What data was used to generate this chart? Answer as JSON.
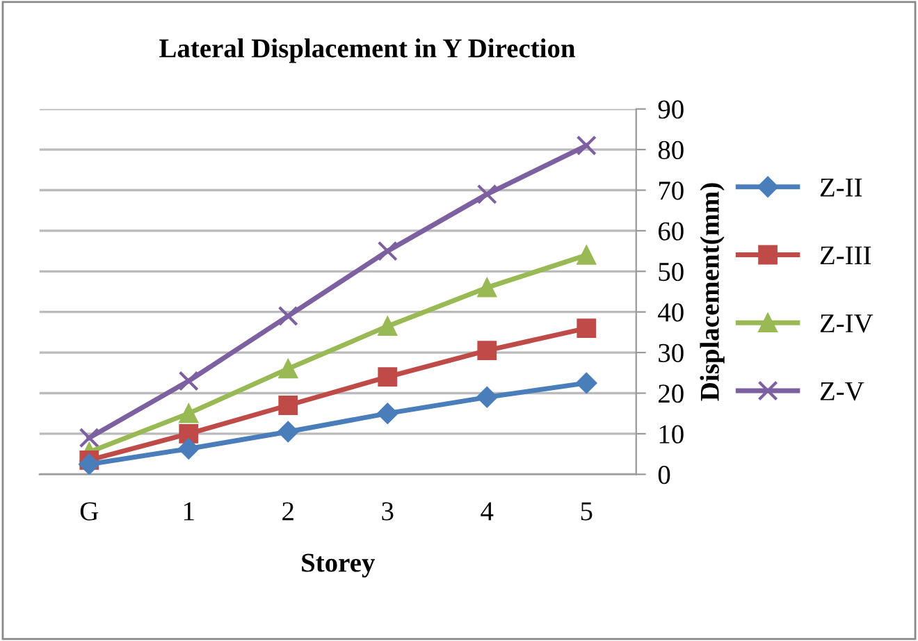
{
  "chart_data": {
    "type": "line",
    "title": "Lateral Displacement in Y Direction",
    "xlabel": "Storey",
    "ylabel": "Displacement(mm)",
    "categories": [
      "G",
      "1",
      "2",
      "3",
      "4",
      "5"
    ],
    "series": [
      {
        "name": "Z-II",
        "color": "#4a7ebb",
        "marker": "diamond",
        "values": [
          2.5,
          6.3,
          10.5,
          15,
          19,
          22.5
        ]
      },
      {
        "name": "Z-III",
        "color": "#be4b48",
        "marker": "square",
        "values": [
          3.5,
          10,
          17,
          24,
          30.5,
          36
        ]
      },
      {
        "name": "Z-IV",
        "color": "#98b954",
        "marker": "triangle",
        "values": [
          5.5,
          15,
          26,
          36.5,
          46,
          54
        ]
      },
      {
        "name": "Z-V",
        "color": "#7d60a0",
        "marker": "cross",
        "values": [
          9,
          23,
          39,
          55,
          69,
          81
        ]
      }
    ],
    "ylim": [
      0,
      90
    ],
    "yticks": [
      0,
      10,
      20,
      30,
      40,
      50,
      60,
      70,
      80,
      90
    ],
    "grid": "y",
    "legend": "right",
    "line_style": "solid"
  }
}
